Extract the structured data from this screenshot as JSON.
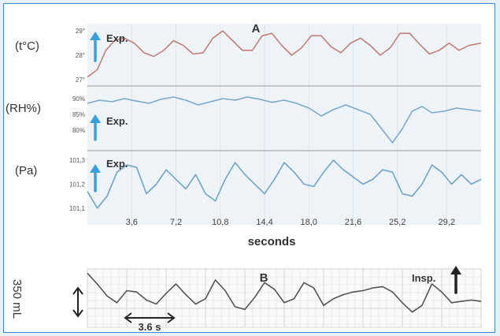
{
  "chart_data": [
    {
      "type": "line",
      "panel_label": "A",
      "xlabel": "seconds",
      "xticks": [
        "3,6",
        "7,2",
        "10,8",
        "14,4",
        "18,0",
        "21,6",
        "25,2",
        "29,2"
      ],
      "xtick_values": [
        3.6,
        7.2,
        10.8,
        14.4,
        18.0,
        21.6,
        25.2,
        29.2
      ],
      "xlim": [
        0,
        32
      ],
      "colors": {
        "temperature": "#c27f77",
        "humidity": "#7da9c9",
        "pressure": "#6fa4c8",
        "arrow": "#3a9fe0"
      },
      "subplots": [
        {
          "key": "temperature",
          "ylabel": "(t°C)",
          "yticks": [
            "29°",
            "28°",
            "27°"
          ],
          "ytick_values": [
            29,
            28,
            27
          ],
          "ylim": [
            26.8,
            29.2
          ],
          "annotation": "Exp.",
          "x": [
            0,
            0.8,
            1.5,
            2.2,
            3.0,
            3.8,
            4.6,
            5.4,
            6.2,
            7.0,
            7.8,
            8.6,
            9.4,
            10.2,
            11.0,
            11.8,
            12.6,
            13.4,
            14.2,
            15.0,
            15.8,
            16.6,
            17.4,
            18.2,
            19.0,
            19.8,
            20.6,
            21.4,
            22.2,
            23.0,
            23.8,
            24.6,
            25.4,
            26.2,
            27.0,
            27.8,
            28.6,
            29.4,
            30.2,
            31.0,
            32.0
          ],
          "values": [
            27.1,
            27.4,
            28.2,
            28.6,
            28.7,
            28.5,
            28.1,
            27.95,
            28.2,
            28.6,
            28.4,
            28.05,
            28.1,
            28.7,
            29.0,
            28.6,
            28.2,
            28.2,
            28.8,
            28.9,
            28.4,
            28.0,
            28.3,
            28.8,
            28.8,
            28.35,
            28.1,
            28.5,
            28.7,
            28.4,
            28.0,
            28.3,
            28.9,
            28.9,
            28.45,
            28.05,
            28.2,
            28.5,
            28.2,
            28.4,
            28.5
          ]
        },
        {
          "key": "humidity",
          "ylabel": "(RH%)",
          "yticks": [
            "90%",
            "85%",
            "80%"
          ],
          "ytick_values": [
            90,
            85,
            80
          ],
          "ylim": [
            74,
            92
          ],
          "annotation": "Exp.",
          "x": [
            0,
            1.0,
            2.0,
            3.0,
            4.0,
            5.0,
            6.0,
            7.0,
            8.0,
            9.0,
            10.0,
            11.0,
            12.0,
            13.0,
            14.0,
            15.0,
            16.0,
            17.0,
            18.0,
            19.0,
            20.0,
            21.0,
            22.0,
            23.0,
            24.0,
            24.8,
            25.6,
            26.4,
            27.2,
            28.0,
            29.0,
            30.0,
            31.0,
            32.0
          ],
          "values": [
            88.5,
            89.5,
            89.0,
            90.0,
            89.2,
            88.5,
            89.8,
            90.5,
            89.5,
            88.0,
            89.0,
            90.0,
            89.5,
            90.5,
            89.8,
            88.8,
            89.5,
            88.5,
            87.0,
            84.5,
            86.5,
            88.0,
            86.5,
            85.0,
            80.0,
            76.0,
            80.5,
            86.0,
            87.5,
            85.5,
            86.0,
            87.0,
            86.5,
            86.0
          ]
        },
        {
          "key": "pressure",
          "ylabel": "(Pa)",
          "yticks": [
            "101,3",
            "101,2",
            "101,1"
          ],
          "ytick_values": [
            101.3,
            101.2,
            101.1
          ],
          "ylim": [
            101.07,
            101.32
          ],
          "annotation": "Exp.",
          "x": [
            0,
            0.8,
            1.6,
            2.4,
            3.2,
            4.0,
            4.8,
            5.6,
            6.4,
            7.2,
            8.0,
            8.8,
            9.6,
            10.4,
            11.2,
            12.0,
            12.8,
            13.6,
            14.4,
            15.2,
            16.0,
            16.8,
            17.6,
            18.4,
            19.2,
            20.0,
            20.8,
            21.6,
            22.4,
            23.2,
            24.0,
            24.8,
            25.6,
            26.4,
            27.2,
            28.0,
            28.8,
            29.6,
            30.4,
            31.2,
            32.0
          ],
          "values": [
            101.17,
            101.1,
            101.15,
            101.25,
            101.28,
            101.27,
            101.16,
            101.2,
            101.26,
            101.22,
            101.18,
            101.24,
            101.16,
            101.13,
            101.22,
            101.29,
            101.24,
            101.2,
            101.16,
            101.22,
            101.29,
            101.25,
            101.2,
            101.19,
            101.25,
            101.3,
            101.26,
            101.23,
            101.2,
            101.22,
            101.26,
            101.25,
            101.16,
            101.15,
            101.2,
            101.28,
            101.25,
            101.2,
            101.24,
            101.2,
            101.22
          ]
        }
      ]
    },
    {
      "type": "line",
      "panel_label": "B",
      "ylabel": "350 mL",
      "scale_bar_label": "3.6 s",
      "annotation": "Insp.",
      "colors": {
        "trace": "#555555",
        "grid": "#d2d2d2",
        "arrow": "#222222"
      },
      "x": [
        0,
        0.8,
        1.6,
        2.4,
        3.2,
        4.0,
        4.8,
        5.6,
        6.4,
        7.2,
        8.0,
        8.8,
        9.6,
        10.4,
        11.2,
        12.0,
        12.8,
        13.6,
        14.4,
        15.2,
        16.0,
        16.8,
        17.6,
        18.4,
        19.2,
        20.0,
        20.8,
        21.6,
        22.4,
        23.2,
        24.0,
        24.8,
        25.6,
        26.4,
        27.2,
        28.0,
        28.8,
        29.6,
        30.4,
        31.2,
        32.0
      ],
      "values": [
        0.9,
        0.5,
        0.05,
        -0.2,
        0.25,
        0.2,
        -0.1,
        -0.25,
        0.15,
        0.5,
        0.1,
        -0.25,
        -0.05,
        0.65,
        0.25,
        -0.35,
        -0.45,
        0.0,
        0.55,
        0.3,
        -0.2,
        -0.05,
        0.55,
        0.35,
        -0.3,
        -0.05,
        0.1,
        0.2,
        0.25,
        0.35,
        0.4,
        0.2,
        -0.2,
        -0.55,
        -0.3,
        0.5,
        0.2,
        -0.2,
        -0.15,
        -0.1,
        -0.15
      ]
    }
  ]
}
